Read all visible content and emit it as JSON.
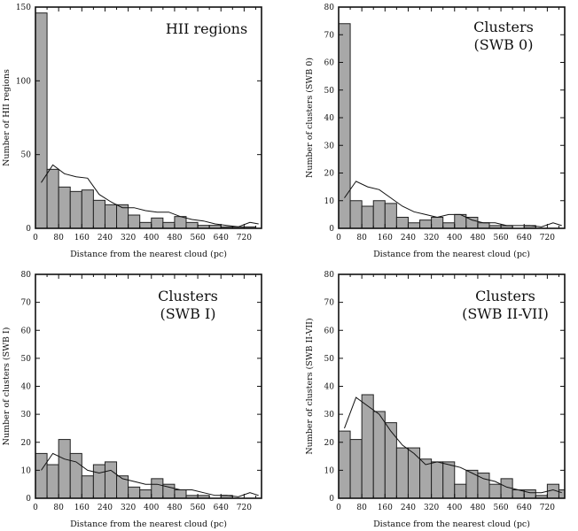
{
  "chart_data": [
    {
      "type": "bar",
      "title": "HII regions",
      "xlabel": "Distance from the nearest cloud (pc)",
      "ylabel": "Number of HII regions",
      "xlim": [
        0,
        780
      ],
      "ylim": [
        0,
        150
      ],
      "xticks": [
        0,
        80,
        160,
        240,
        320,
        400,
        480,
        560,
        640,
        720
      ],
      "yticks": [
        0,
        50,
        100,
        150
      ],
      "bin_width": 40,
      "bin_start": [
        0,
        40,
        80,
        120,
        160,
        200,
        240,
        280,
        320,
        360,
        400,
        440,
        480,
        520,
        560,
        600,
        640,
        680,
        720
      ],
      "values": [
        146,
        40,
        28,
        25,
        26,
        19,
        16,
        16,
        9,
        4,
        7,
        4,
        8,
        4,
        2,
        2,
        1,
        1,
        1
      ],
      "line": {
        "x": [
          20,
          60,
          100,
          140,
          180,
          220,
          260,
          300,
          340,
          380,
          420,
          460,
          500,
          540,
          580,
          620,
          660,
          700,
          740,
          770
        ],
        "y": [
          31,
          43,
          37,
          35,
          34,
          23,
          18,
          14,
          14,
          12,
          11,
          11,
          8,
          6,
          5,
          3,
          2,
          1,
          4,
          3
        ]
      }
    },
    {
      "type": "bar",
      "title": "Clusters",
      "subtitle": "(SWB 0)",
      "xlabel": "Distance from the nearest cloud (pc)",
      "ylabel": "Number of clusters (SWB 0)",
      "xlim": [
        0,
        780
      ],
      "ylim": [
        0,
        80
      ],
      "xticks": [
        0,
        80,
        160,
        240,
        320,
        400,
        480,
        560,
        640,
        720
      ],
      "yticks": [
        0,
        10,
        20,
        30,
        40,
        50,
        60,
        70,
        80
      ],
      "bin_width": 40,
      "bin_start": [
        0,
        40,
        80,
        120,
        160,
        200,
        240,
        280,
        320,
        360,
        400,
        440,
        480,
        520,
        560,
        600,
        640,
        680,
        720
      ],
      "values": [
        74,
        10,
        8,
        10,
        9,
        4,
        2,
        3,
        4,
        2,
        5,
        4,
        2,
        1,
        1,
        0,
        1,
        0,
        0
      ],
      "line": {
        "x": [
          20,
          60,
          100,
          140,
          180,
          220,
          260,
          300,
          340,
          380,
          420,
          460,
          500,
          540,
          580,
          620,
          660,
          700,
          740,
          770
        ],
        "y": [
          11,
          17,
          15,
          14,
          11,
          8,
          6,
          5,
          4,
          5,
          5,
          3,
          2,
          2,
          1,
          1,
          1,
          0.5,
          2,
          1
        ]
      }
    },
    {
      "type": "bar",
      "title": "Clusters",
      "subtitle": "(SWB I)",
      "xlabel": "Distance from the nearest cloud (pc)",
      "ylabel": "Number of clusters (SWB I)",
      "xlim": [
        0,
        780
      ],
      "ylim": [
        0,
        80
      ],
      "xticks": [
        0,
        80,
        160,
        240,
        320,
        400,
        480,
        560,
        640,
        720
      ],
      "yticks": [
        0,
        10,
        20,
        30,
        40,
        50,
        60,
        70,
        80
      ],
      "bin_width": 40,
      "bin_start": [
        0,
        40,
        80,
        120,
        160,
        200,
        240,
        280,
        320,
        360,
        400,
        440,
        480,
        520,
        560,
        600,
        640,
        680,
        720
      ],
      "values": [
        16,
        12,
        21,
        16,
        8,
        12,
        13,
        8,
        4,
        3,
        7,
        5,
        3,
        1,
        1,
        0,
        1,
        0,
        0
      ],
      "line": {
        "x": [
          20,
          60,
          100,
          140,
          180,
          220,
          260,
          300,
          340,
          380,
          420,
          460,
          500,
          540,
          580,
          620,
          660,
          700,
          740,
          770
        ],
        "y": [
          10,
          16,
          14,
          13,
          10,
          9,
          10,
          7,
          6,
          5,
          5,
          4,
          3,
          3,
          2,
          1,
          1,
          0.5,
          2,
          1
        ]
      }
    },
    {
      "type": "bar",
      "title": "Clusters",
      "subtitle": "(SWB II-VII)",
      "xlabel": "Distance from the nearest cloud (pc)",
      "ylabel": "Number of clusters (SWB II-VII)",
      "xlim": [
        0,
        780
      ],
      "ylim": [
        0,
        80
      ],
      "xticks": [
        0,
        80,
        160,
        240,
        320,
        400,
        480,
        560,
        640,
        720
      ],
      "yticks": [
        0,
        10,
        20,
        30,
        40,
        50,
        60,
        70,
        80
      ],
      "bin_width": 40,
      "bin_start": [
        0,
        40,
        80,
        120,
        160,
        200,
        240,
        280,
        320,
        360,
        400,
        440,
        480,
        520,
        560,
        600,
        640,
        680,
        720,
        760
      ],
      "values": [
        24,
        21,
        37,
        31,
        27,
        18,
        18,
        14,
        13,
        13,
        5,
        10,
        9,
        5,
        7,
        3,
        3,
        1,
        5,
        3
      ],
      "line": {
        "x": [
          20,
          60,
          100,
          140,
          180,
          220,
          260,
          300,
          340,
          380,
          420,
          460,
          500,
          540,
          580,
          620,
          660,
          700,
          740,
          770
        ],
        "y": [
          25,
          36,
          33,
          30,
          24,
          19,
          16,
          12,
          13,
          12,
          11,
          9,
          7,
          6,
          4,
          3,
          2,
          2,
          3,
          2
        ]
      }
    }
  ]
}
